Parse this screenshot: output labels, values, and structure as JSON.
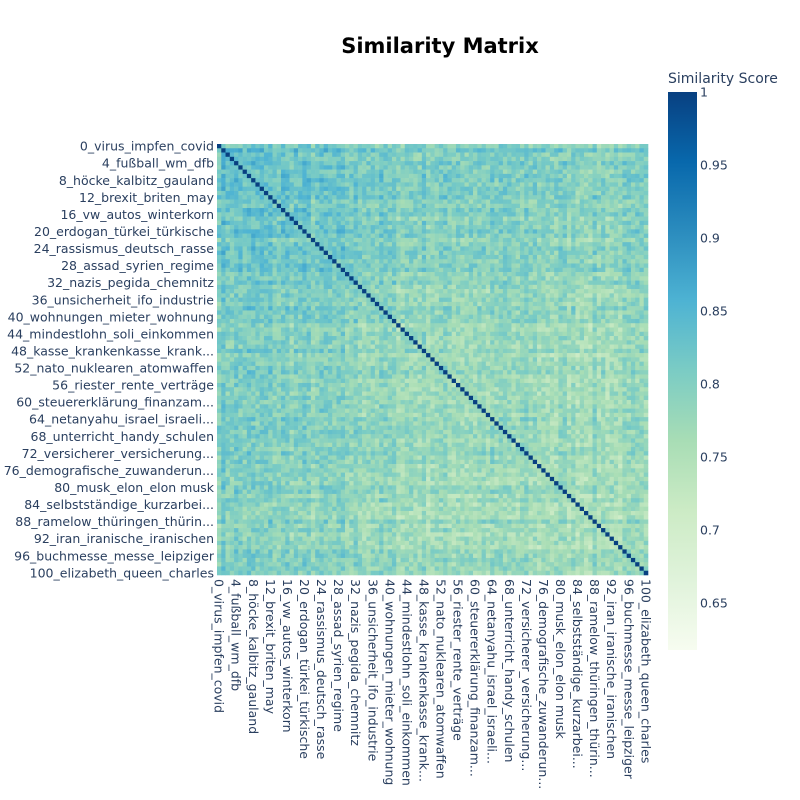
{
  "chart_data": {
    "type": "heatmap",
    "title": "Similarity Matrix",
    "colorbar_title": "Similarity Score",
    "colorbar_ticks": [
      1,
      0.95,
      0.9,
      0.85,
      0.8,
      0.75,
      0.7,
      0.65
    ],
    "zrange": [
      0.618,
      1
    ],
    "diagonal_value": 1,
    "matrix_size": 101,
    "tick_step": 4,
    "tick_labels": [
      "0_virus_impfen_covid",
      "4_fußball_wm_dfb",
      "8_höcke_kalbitz_gauland",
      "12_brexit_briten_may",
      "16_vw_autos_winterkorn",
      "20_erdogan_türkei_türkische",
      "24_rassismus_deutsch_rasse",
      "28_assad_syrien_regime",
      "32_nazis_pegida_chemnitz",
      "36_unsicherheit_ifo_industrie",
      "40_wohnungen_mieter_wohnung",
      "44_mindestlohn_soli_einkommen",
      "48_kasse_krankenkasse_krank...",
      "52_nato_nuklearen_atomwaffen",
      "56_riester_rente_verträge",
      "60_steuererklärung_finanzam...",
      "64_netanyahu_israel_israeli...",
      "68_unterricht_handy_schulen",
      "72_versicherer_versicherung...",
      "76_demografische_zuwanderun...",
      "80_musk_elon_elon musk",
      "84_selbstständige_kurzarbei...",
      "88_ramelow_thüringen_thürin...",
      "92_iran_iranische_iranischen",
      "96_buchmesse_messe_leipziger",
      "100_elizabeth_queen_charles"
    ],
    "colorscale": [
      "#f7fcf0",
      "#e0f3db",
      "#ccebc5",
      "#a8ddb5",
      "#7bccc4",
      "#4eb3d3",
      "#2b8cbe",
      "#0868ac",
      "#084081"
    ],
    "grid": false,
    "legend": "colorbar-right"
  }
}
